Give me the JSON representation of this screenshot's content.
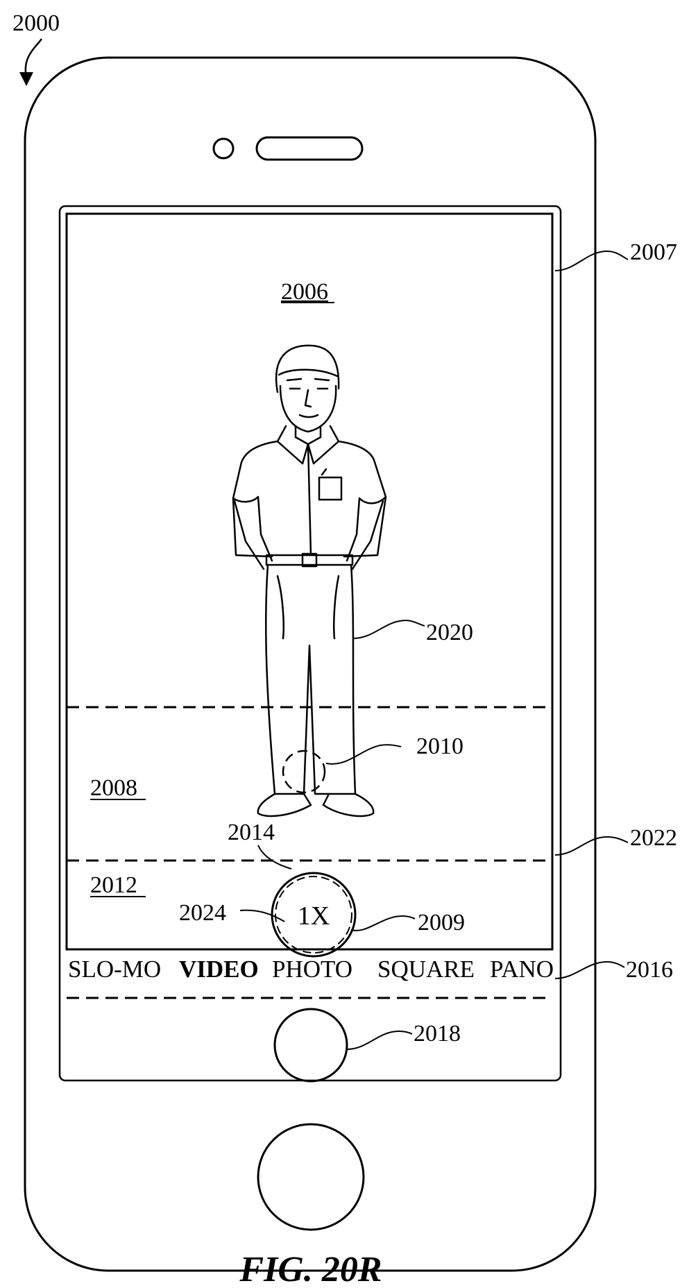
{
  "figure": {
    "device_ref": "2000",
    "caption": "FIG. 20R"
  },
  "references": {
    "camera_display_region": "2007",
    "viewfinder_region": "2006",
    "subject": "2020",
    "region_2008": "2008",
    "zoom_control_area": "2010",
    "region_2012": "2012",
    "zoom_button_ref": "2014",
    "zoom_affordance": "2009",
    "zoom_indicator_ref": "2024",
    "region_boundary": "2022",
    "mode_selector": "2016",
    "shutter": "2018"
  },
  "zoom_button": {
    "label": "1X"
  },
  "camera_modes": [
    {
      "label": "SLO-MO",
      "selected": false
    },
    {
      "label": "VIDEO",
      "selected": true
    },
    {
      "label": "PHOTO",
      "selected": false
    },
    {
      "label": "SQUARE",
      "selected": false
    },
    {
      "label": "PANO",
      "selected": false
    }
  ],
  "colors": {
    "line": "#000000",
    "background": "#ffffff"
  }
}
